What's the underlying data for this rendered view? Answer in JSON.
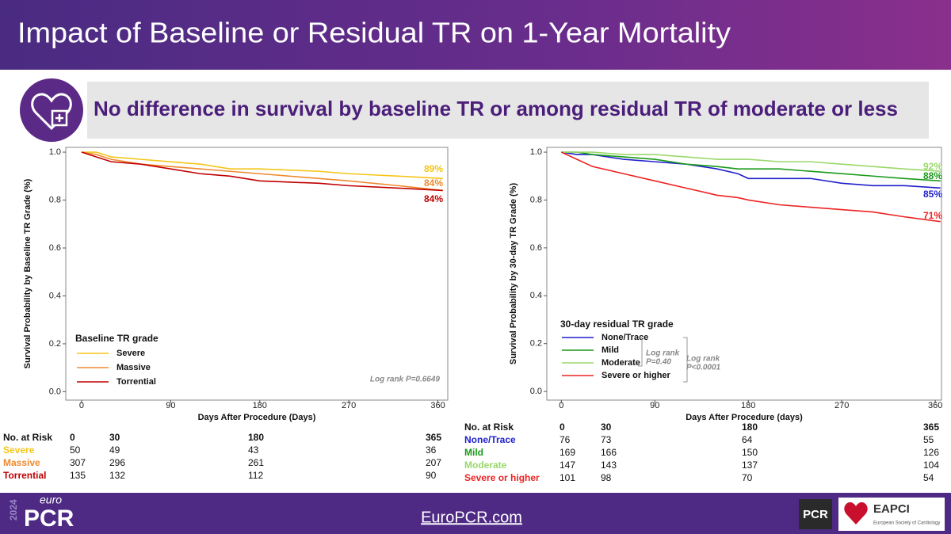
{
  "header": {
    "title": "Impact of Baseline or Residual TR on 1-Year Mortality"
  },
  "banner": {
    "text": "No difference in survival by baseline TR or among residual TR of moderate or less"
  },
  "chart_data": [
    {
      "type": "line",
      "step": true,
      "x_label": "Days After Procedure (Days)",
      "y_label": "Survival Probability  by Baseline  TR Grade (%)",
      "x": [
        0,
        15,
        30,
        60,
        90,
        120,
        150,
        180,
        240,
        270,
        320,
        365
      ],
      "series": [
        {
          "name": "Severe",
          "color": "#f5c518",
          "values": [
            1.0,
            1.0,
            0.98,
            0.97,
            0.96,
            0.95,
            0.93,
            0.93,
            0.92,
            0.91,
            0.9,
            0.89
          ]
        },
        {
          "name": "Massive",
          "color": "#ef8a2e",
          "values": [
            1.0,
            0.99,
            0.97,
            0.95,
            0.94,
            0.93,
            0.92,
            0.91,
            0.89,
            0.88,
            0.86,
            0.84
          ]
        },
        {
          "name": "Torrential",
          "color": "#c00000",
          "values": [
            1.0,
            0.98,
            0.96,
            0.95,
            0.93,
            0.91,
            0.9,
            0.88,
            0.87,
            0.86,
            0.85,
            0.84
          ]
        }
      ],
      "end_labels": [
        "89%",
        "84%",
        "84%"
      ],
      "legend_title": "Baseline  TR grade",
      "annotations": [
        "Log rank P=0.6649"
      ],
      "xlim": [
        -16,
        370
      ],
      "xticks": [
        0,
        90,
        180,
        270,
        360
      ],
      "ylim": [
        -0.035,
        1.02
      ],
      "yticks": [
        {
          "value": 0,
          "label": "0.0"
        },
        0.2,
        0.4,
        0.6,
        0.8,
        {
          "value": 1,
          "label": "1.0"
        }
      ],
      "risk_table": {
        "label": "No. at Risk",
        "times": [
          0,
          30,
          180,
          365
        ],
        "counts": [
          [
            50,
            49,
            43,
            36
          ],
          [
            307,
            296,
            261,
            207
          ],
          [
            135,
            132,
            112,
            90
          ]
        ]
      }
    },
    {
      "type": "line",
      "step": true,
      "x_label": "Days After Procedure (days)",
      "y_label": "Survival Probability  by 30-day TR Grade (%)",
      "x": [
        0,
        15,
        30,
        60,
        90,
        120,
        150,
        170,
        180,
        210,
        240,
        270,
        300,
        330,
        365
      ],
      "series": [
        {
          "name": "None/Trace",
          "color": "#1f1fcc",
          "values": [
            1.0,
            0.99,
            0.99,
            0.97,
            0.96,
            0.95,
            0.93,
            0.91,
            0.89,
            0.89,
            0.89,
            0.87,
            0.86,
            0.86,
            0.85
          ]
        },
        {
          "name": "Mild",
          "color": "#1a9a1a",
          "values": [
            1.0,
            1.0,
            0.99,
            0.98,
            0.97,
            0.95,
            0.94,
            0.93,
            0.93,
            0.93,
            0.92,
            0.91,
            0.9,
            0.89,
            0.88
          ]
        },
        {
          "name": "Moderate",
          "color": "#9ad86a",
          "values": [
            1.0,
            1.0,
            1.0,
            0.99,
            0.99,
            0.98,
            0.97,
            0.97,
            0.97,
            0.96,
            0.96,
            0.95,
            0.94,
            0.93,
            0.92
          ]
        },
        {
          "name": "Severe or higher",
          "color": "#ee2222",
          "values": [
            1.0,
            0.97,
            0.94,
            0.91,
            0.88,
            0.85,
            0.82,
            0.81,
            0.8,
            0.78,
            0.77,
            0.76,
            0.75,
            0.73,
            0.71
          ]
        }
      ],
      "end_labels": [
        "85%",
        "88%",
        "92%",
        "71%"
      ],
      "legend_title": "30-day  residual  TR grade",
      "annotations": [
        "Log rank",
        "P=0.40",
        "Log rank",
        "P<0.0001"
      ],
      "xlim": [
        -14,
        366
      ],
      "xticks": [
        0,
        90,
        180,
        270,
        360
      ],
      "ylim": [
        -0.036,
        1.02
      ],
      "yticks": [
        {
          "value": 0,
          "label": "0.0"
        },
        0.2,
        0.4,
        0.6,
        0.8,
        {
          "value": 1,
          "label": "1.0"
        }
      ],
      "risk_table": {
        "label": "No. at Risk",
        "times": [
          0,
          30,
          180,
          365
        ],
        "counts": [
          [
            76,
            73,
            64,
            55
          ],
          [
            169,
            166,
            150,
            126
          ],
          [
            147,
            143,
            137,
            104
          ],
          [
            101,
            98,
            70,
            54
          ]
        ]
      }
    }
  ],
  "footer": {
    "euro": "euro",
    "year": "2024",
    "brand": "PCR",
    "site": "EuroPCR.com",
    "pcr_logo": "PCR",
    "eapci": "EAPCI",
    "esc": "European Society of Cardiology"
  }
}
